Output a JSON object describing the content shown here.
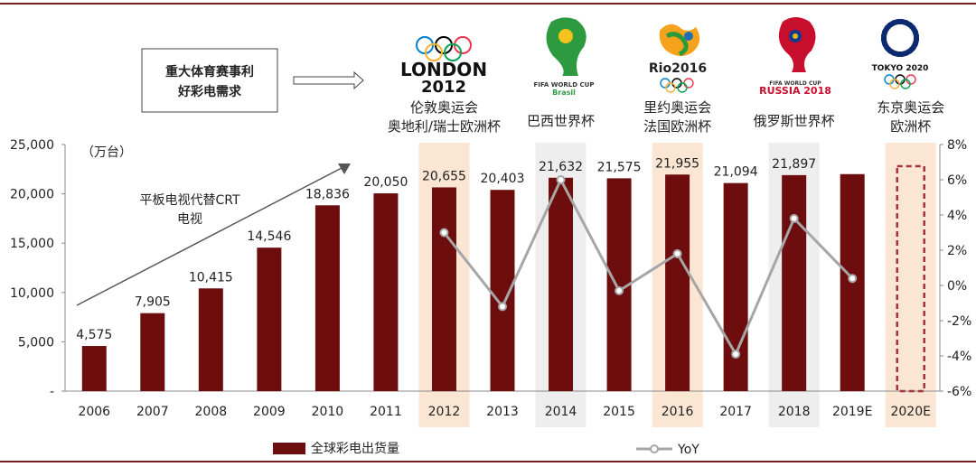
{
  "chart_data": {
    "type": "bar",
    "categories": [
      "2006",
      "2007",
      "2008",
      "2009",
      "2010",
      "2011",
      "2012",
      "2013",
      "2014",
      "2015",
      "2016",
      "2017",
      "2018",
      "2019E",
      "2020E"
    ],
    "series": [
      {
        "name": "全球彩电出货量",
        "type": "bar",
        "values": [
          4575,
          7905,
          10415,
          14546,
          18836,
          20050,
          20655,
          20403,
          21632,
          21575,
          21955,
          21094,
          21897,
          22000,
          null
        ],
        "data_labels": [
          "4,575",
          "7,905",
          "10,415",
          "14,546",
          "18,836",
          "20,050",
          "20,655",
          "20,403",
          "21,632",
          "21,575",
          "21,955",
          "21,094",
          "21,897",
          "",
          ""
        ]
      },
      {
        "name": "YoY",
        "type": "line",
        "axis": "right",
        "values": [
          null,
          null,
          null,
          null,
          null,
          null,
          3.0,
          -1.2,
          6.0,
          -0.3,
          1.8,
          -3.9,
          3.8,
          0.4,
          null
        ]
      }
    ],
    "yaxis_left": {
      "unit": "（万台）",
      "range": [
        0,
        25000
      ],
      "ticks": [
        "-",
        "5,000",
        "10,000",
        "15,000",
        "20,000",
        "25,000"
      ]
    },
    "yaxis_right": {
      "range": [
        -6,
        8
      ],
      "ticks": [
        "-6%",
        "-4%",
        "-2%",
        "0%",
        "2%",
        "4%",
        "6%",
        "8%"
      ]
    },
    "highlighted_categories": [
      {
        "category": "2012",
        "color": "#fbe6d4"
      },
      {
        "category": "2014",
        "color": "#eeeeee"
      },
      {
        "category": "2016",
        "color": "#fbe6d4"
      },
      {
        "category": "2018",
        "color": "#eeeeee"
      },
      {
        "category": "2020E",
        "color": "#fbe6d4"
      }
    ],
    "forecast_placeholder": {
      "category": "2020E",
      "value": 22800
    },
    "annotations": {
      "trend_arrow_label": "平板电视代替CRT\n电视",
      "box_label": "重大体育赛事利\n好彩电需求"
    },
    "events": [
      {
        "category": "2012",
        "logo": "london-2012-logo",
        "logo_text": "LONDON 2012",
        "label": "伦敦奥运会\n奥地利/瑞士欧洲杯"
      },
      {
        "category": "2014",
        "logo": "fifa-world-cup-brasil-logo",
        "logo_text": "FIFA WORLD CUP Brasil",
        "label": "巴西世界杯"
      },
      {
        "category": "2016",
        "logo": "rio-2016-logo",
        "logo_text": "Rio2016",
        "label": "里约奥运会\n法国欧洲杯"
      },
      {
        "category": "2018",
        "logo": "fifa-russia-2018-logo",
        "logo_text": "RUSSIA 2018",
        "logo_subtext": "FIFA WORLD CUP",
        "label": "俄罗斯世界杯"
      },
      {
        "category": "2020E",
        "logo": "tokyo-2020-logo",
        "logo_text": "TOKYO 2020",
        "label": "东京奥运会\n欧洲杯"
      }
    ],
    "legend": {
      "position": "bottom",
      "entries": [
        "全球彩电出货量",
        "YoY"
      ]
    },
    "colors": {
      "bar": "#6e0d0d",
      "line": "#a6a6a6",
      "frame": "#7a1f1f",
      "dashed": "#a3333d",
      "arrow": "#555555"
    }
  }
}
